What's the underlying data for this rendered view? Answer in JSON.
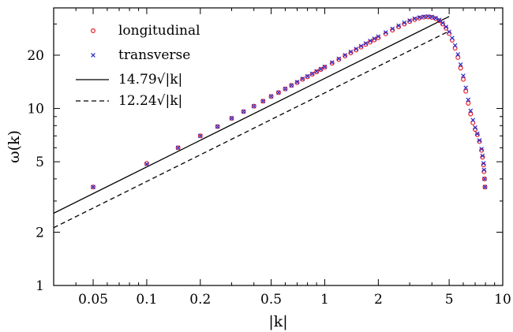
{
  "chart_data": {
    "type": "scatter",
    "xlabel": "|k|",
    "ylabel": "ω(k)",
    "xscale": "log",
    "yscale": "log",
    "xlim": [
      0.03,
      10
    ],
    "ylim": [
      1,
      37
    ],
    "x_ticks": [
      {
        "value": 0.05,
        "label": "0.05"
      },
      {
        "value": 0.1,
        "label": "0.1"
      },
      {
        "value": 0.2,
        "label": "0.2"
      },
      {
        "value": 0.5,
        "label": "0.5"
      },
      {
        "value": 1,
        "label": "1"
      },
      {
        "value": 2,
        "label": "2"
      },
      {
        "value": 5,
        "label": "5"
      },
      {
        "value": 10,
        "label": "10"
      }
    ],
    "y_ticks": [
      {
        "value": 1,
        "label": "1"
      },
      {
        "value": 2,
        "label": "2"
      },
      {
        "value": 5,
        "label": "5"
      },
      {
        "value": 10,
        "label": "10"
      },
      {
        "value": 20,
        "label": "20"
      }
    ],
    "grid": false,
    "legend_position": "top-left",
    "series": [
      {
        "name": "longitudinal",
        "kind": "points",
        "marker": "circle",
        "color": "#e8202a",
        "x": [
          0.05,
          0.1,
          0.15,
          0.2,
          0.25,
          0.3,
          0.35,
          0.4,
          0.45,
          0.5,
          0.55,
          0.6,
          0.65,
          0.7,
          0.75,
          0.8,
          0.85,
          0.9,
          0.95,
          1.0,
          1.1,
          1.2,
          1.3,
          1.4,
          1.5,
          1.6,
          1.7,
          1.8,
          1.9,
          2.0,
          2.2,
          2.4,
          2.6,
          2.8,
          3.0,
          3.2,
          3.4,
          3.6,
          3.8,
          4.0,
          4.2,
          4.4,
          4.6,
          4.8,
          5.0,
          5.2,
          5.4,
          5.6,
          5.8,
          6.0,
          6.2,
          6.4,
          6.6,
          6.8,
          7.0,
          7.2,
          7.4,
          7.6,
          7.7,
          7.8,
          7.85,
          7.9,
          7.95
        ],
        "y": [
          3.6,
          4.9,
          6.0,
          7.0,
          7.9,
          8.8,
          9.6,
          10.3,
          11.0,
          11.7,
          12.3,
          12.9,
          13.5,
          14.0,
          14.6,
          15.1,
          15.6,
          16.1,
          16.6,
          17.1,
          18.0,
          18.9,
          19.8,
          20.6,
          21.4,
          22.2,
          23.0,
          23.7,
          24.4,
          25.1,
          26.4,
          27.7,
          28.9,
          30.0,
          31.0,
          31.8,
          32.4,
          32.8,
          32.9,
          32.7,
          32.2,
          31.3,
          30.0,
          28.4,
          26.5,
          24.3,
          21.9,
          19.4,
          16.9,
          14.6,
          12.5,
          10.7,
          9.3,
          8.3,
          7.6,
          7.1,
          6.5,
          5.8,
          5.3,
          4.8,
          4.4,
          4.0,
          3.6
        ]
      },
      {
        "name": "transverse",
        "kind": "points",
        "marker": "x",
        "color": "#2b2bc9",
        "x": [
          0.05,
          0.1,
          0.15,
          0.2,
          0.25,
          0.3,
          0.35,
          0.4,
          0.45,
          0.5,
          0.55,
          0.6,
          0.65,
          0.7,
          0.75,
          0.8,
          0.85,
          0.9,
          0.95,
          1.0,
          1.1,
          1.2,
          1.3,
          1.4,
          1.5,
          1.6,
          1.7,
          1.8,
          1.9,
          2.0,
          2.2,
          2.4,
          2.6,
          2.8,
          3.0,
          3.2,
          3.4,
          3.6,
          3.8,
          4.0,
          4.2,
          4.4,
          4.6,
          4.8,
          5.0,
          5.2,
          5.4,
          5.6,
          5.8,
          6.0,
          6.2,
          6.4,
          6.6,
          6.8,
          7.0,
          7.2,
          7.4,
          7.6,
          7.7,
          7.8,
          7.85,
          7.9,
          7.95
        ],
        "y": [
          3.6,
          4.85,
          6.0,
          7.0,
          7.9,
          8.8,
          9.6,
          10.3,
          11.0,
          11.7,
          12.3,
          12.9,
          13.5,
          14.1,
          14.7,
          15.2,
          15.7,
          16.2,
          16.7,
          17.2,
          18.2,
          19.1,
          20.0,
          20.9,
          21.7,
          22.5,
          23.3,
          24.1,
          24.8,
          25.5,
          26.9,
          28.2,
          29.4,
          30.5,
          31.4,
          32.2,
          32.7,
          33.0,
          33.1,
          32.9,
          32.4,
          31.6,
          30.4,
          28.9,
          27.1,
          25.0,
          22.7,
          20.2,
          17.7,
          15.3,
          13.1,
          11.2,
          9.7,
          8.6,
          7.8,
          7.2,
          6.6,
          5.9,
          5.4,
          4.9,
          4.5,
          4.0,
          3.6
        ]
      },
      {
        "name": "14.79√|k|",
        "kind": "line",
        "dash": "solid",
        "color": "#000000",
        "x": [
          0.03,
          5.0
        ],
        "y": [
          2.56,
          33.07
        ]
      },
      {
        "name": "12.24√|k|",
        "kind": "line",
        "dash": "dashed",
        "color": "#000000",
        "x": [
          0.03,
          5.0
        ],
        "y": [
          2.12,
          27.37
        ]
      }
    ]
  }
}
